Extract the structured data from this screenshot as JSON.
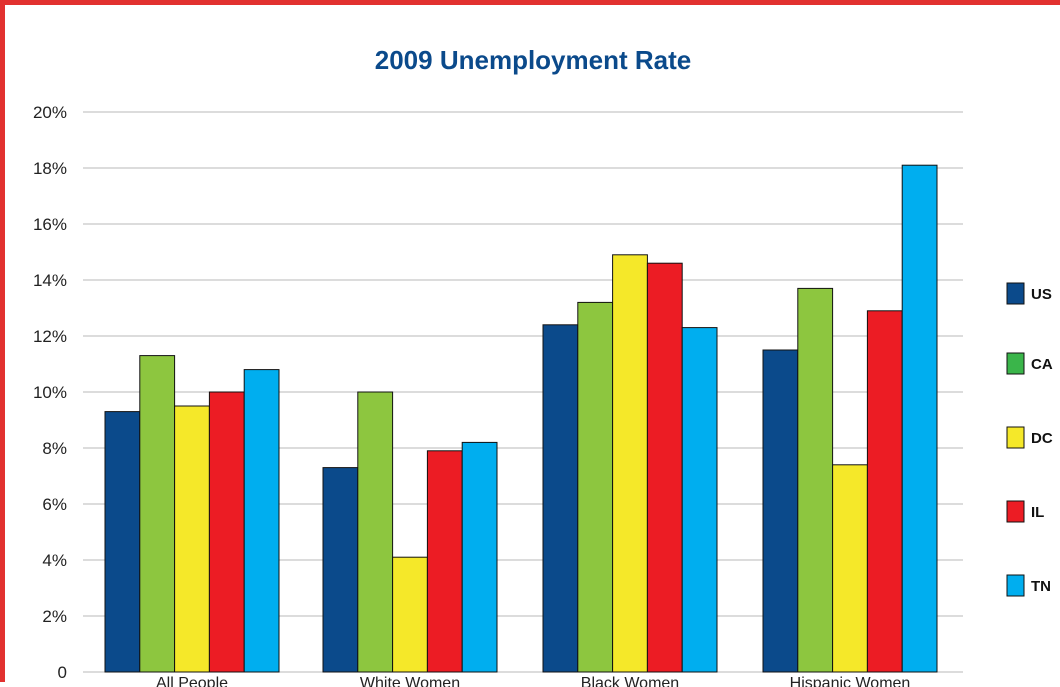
{
  "chart_data": {
    "type": "bar",
    "title": "2009 Unemployment Rate",
    "title_color": "#0b4a8b",
    "categories": [
      "All People",
      "White Women",
      "Black Women",
      "Hispanic Women"
    ],
    "series": [
      {
        "name": "US",
        "color": "#0b4a8b",
        "values": [
          9.3,
          7.3,
          12.4,
          11.5
        ]
      },
      {
        "name": "CA",
        "color": "#8dc63f",
        "values": [
          11.3,
          10.0,
          13.2,
          13.7
        ]
      },
      {
        "name": "DC",
        "color": "#f5e829",
        "values": [
          9.5,
          4.1,
          14.9,
          7.4
        ]
      },
      {
        "name": "IL",
        "color": "#ec1c24",
        "values": [
          10.0,
          7.9,
          14.6,
          12.9
        ]
      },
      {
        "name": "TN",
        "color": "#00aeef",
        "values": [
          10.8,
          8.2,
          12.3,
          18.1
        ]
      }
    ],
    "legend_swatch_colors": {
      "CA": "#3ab54a"
    },
    "yticks": [
      "0",
      "2%",
      "4%",
      "6%",
      "8%",
      "10%",
      "12%",
      "14%",
      "16%",
      "18%",
      "20%"
    ],
    "ylim": [
      0,
      20
    ],
    "grid": true,
    "legend_position": "right"
  }
}
